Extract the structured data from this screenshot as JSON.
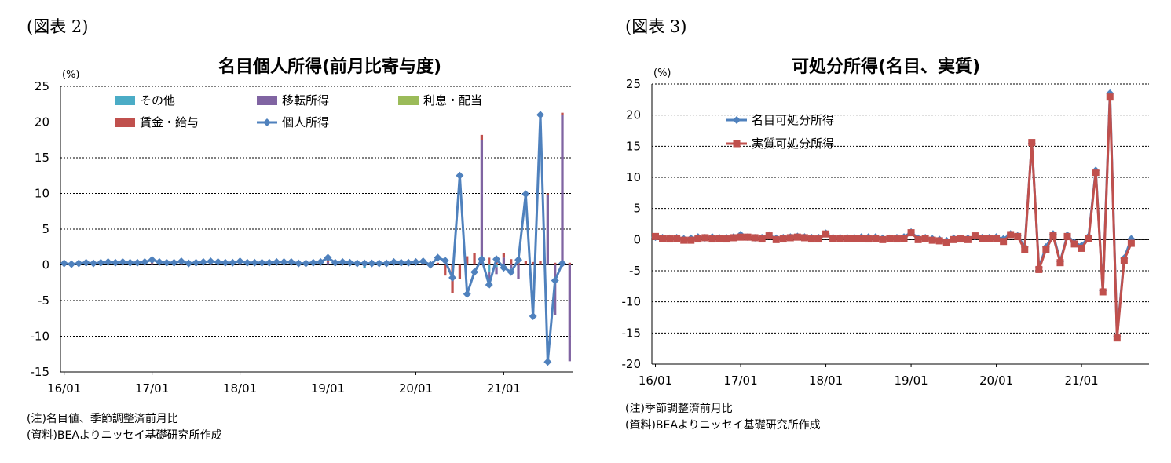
{
  "figures": [
    {
      "label": "(図表 2)",
      "notes": [
        "(注)名目値、季節調整済前月比",
        "(資料)BEAよりニッセイ基礎研究所作成"
      ]
    },
    {
      "label": "(図表 3)",
      "notes": [
        "(注)季節調整済前月比",
        "(資料)BEAよりニッセイ基礎研究所作成"
      ]
    }
  ],
  "chart_data": [
    {
      "type": "bar",
      "title": "名目個人所得(前月比寄与度)",
      "ylabel": "(%)",
      "ylim": [
        -15,
        25
      ],
      "yticks": [
        25,
        20,
        15,
        10,
        5,
        0,
        -5,
        -10,
        -15
      ],
      "xtick_labels": [
        "16/01",
        "17/01",
        "18/01",
        "19/01",
        "20/01",
        "21/01"
      ],
      "grid": true,
      "legend_position": "top",
      "colors": {
        "other": "#4bacc6",
        "transfer": "#8064a2",
        "interest": "#9bbb59",
        "wages": "#c0504d",
        "income": "#4f81bd"
      },
      "series": [
        {
          "key": "other",
          "name": "その他",
          "values": [
            0,
            0,
            0,
            0,
            0,
            0,
            0,
            0,
            0,
            0,
            0,
            0,
            0,
            0,
            0,
            0,
            0,
            0,
            0,
            0,
            0,
            0,
            0,
            0,
            0,
            0,
            0,
            0,
            0,
            0,
            0,
            0,
            0,
            0,
            0,
            0,
            0,
            0,
            0,
            0,
            0,
            -0.5,
            0,
            0,
            0,
            0,
            0,
            0,
            0,
            0,
            0,
            0,
            0,
            0,
            0,
            0,
            0,
            0,
            -1.0,
            -0.3,
            0,
            0,
            0,
            0,
            0,
            0,
            0,
            0,
            0,
            0,
            0,
            0,
            0,
            0,
            0,
            0
          ]
        },
        {
          "key": "transfer",
          "name": "移転所得",
          "values": [
            0,
            0,
            0,
            0,
            0,
            0,
            0.1,
            0,
            0,
            0,
            0,
            0,
            0.2,
            0,
            0,
            0,
            0,
            0,
            0,
            0,
            0,
            0,
            0,
            0,
            0.2,
            0,
            0,
            0,
            0,
            0,
            0,
            0,
            0,
            0,
            0,
            0,
            0.4,
            0,
            0,
            0,
            0,
            0,
            0,
            0,
            0,
            0,
            0,
            0,
            0.5,
            0,
            0,
            0,
            0,
            0,
            0,
            0,
            0,
            17.5,
            -1.5,
            -1.0,
            1.0,
            -0.5,
            -2.0,
            0,
            0,
            0,
            9.8,
            -7.0,
            21.0,
            -13.5,
            -2.2,
            0,
            0,
            0,
            0,
            0
          ]
        },
        {
          "key": "interest",
          "name": "利息・配当",
          "values": [
            0,
            0,
            0,
            0,
            0,
            0,
            0,
            0,
            0,
            0,
            0,
            0,
            0,
            0,
            0,
            0,
            0,
            0,
            0,
            0,
            0,
            0,
            0,
            0,
            0,
            0,
            0,
            0,
            0,
            0,
            0,
            0,
            0,
            0,
            0,
            0,
            0,
            0,
            0,
            0,
            0,
            0,
            0,
            0,
            0,
            0,
            0,
            0,
            0,
            0,
            0,
            0,
            0,
            0,
            0,
            0,
            0,
            0,
            0,
            0,
            0,
            0,
            0,
            0,
            0,
            0,
            0,
            0,
            0,
            0,
            0,
            0,
            0,
            0,
            0,
            0
          ]
        },
        {
          "key": "wages",
          "name": "賃金・給与",
          "values": [
            0.2,
            0.1,
            0.2,
            0.2,
            0.1,
            0.2,
            0.3,
            0.2,
            0.2,
            0.2,
            0.2,
            0.2,
            0.4,
            0.3,
            0.2,
            0.2,
            0.3,
            0.2,
            0.2,
            0.3,
            0.3,
            0.3,
            0.2,
            0.2,
            0.3,
            0.2,
            0.2,
            0.3,
            0.2,
            0.3,
            0.3,
            0.3,
            0.2,
            0.2,
            0.2,
            0.3,
            0.5,
            0.2,
            0.2,
            0.3,
            0.2,
            0.2,
            0.2,
            0.2,
            0.2,
            0.2,
            0.3,
            0.2,
            0.3,
            0.3,
            0.3,
            0.3,
            -1.5,
            -4.0,
            -2.0,
            1.2,
            1.6,
            0.7,
            1.0,
            0.5,
            0.6,
            0.8,
            1.0,
            0.6,
            0.4,
            0.5,
            0.2,
            0.3,
            0.3,
            0.3,
            0.3,
            0.3,
            0.3,
            0,
            0,
            0
          ]
        },
        {
          "key": "income",
          "name": "個人所得",
          "type": "line",
          "values": [
            0.2,
            0.1,
            0.2,
            0.3,
            0.2,
            0.3,
            0.4,
            0.3,
            0.4,
            0.3,
            0.3,
            0.4,
            0.7,
            0.4,
            0.3,
            0.3,
            0.5,
            0.2,
            0.3,
            0.4,
            0.5,
            0.4,
            0.3,
            0.3,
            0.5,
            0.3,
            0.3,
            0.3,
            0.3,
            0.4,
            0.4,
            0.4,
            0.2,
            0.2,
            0.3,
            0.4,
            1.0,
            0.3,
            0.4,
            0.3,
            0.2,
            0.2,
            0.2,
            0.2,
            0.2,
            0.4,
            0.3,
            0.3,
            0.4,
            0.5,
            0.0,
            1.0,
            0.6,
            -1.8,
            12.5,
            -4.1,
            -1.0,
            0.8,
            -2.8,
            0.8,
            -0.4,
            -1.0,
            0.7,
            9.9,
            -7.2,
            21.0,
            -13.6,
            -2.2,
            0.2
          ]
        }
      ]
    },
    {
      "type": "line",
      "title": "可処分所得(名目、実質)",
      "ylabel": "(%)",
      "ylim": [
        -20,
        25
      ],
      "yticks": [
        25,
        20,
        15,
        10,
        5,
        0,
        -5,
        -10,
        -15,
        -20
      ],
      "xtick_labels": [
        "16/01",
        "17/01",
        "18/01",
        "19/01",
        "20/01",
        "21/01"
      ],
      "grid": true,
      "legend_position": "top-left",
      "colors": {
        "nominal": "#4f81bd",
        "real": "#c0504d"
      },
      "series": [
        {
          "key": "nominal",
          "name": "名目可処分所得",
          "values": [
            0.4,
            0.3,
            0.2,
            0.3,
            0.1,
            0.2,
            0.4,
            0.3,
            0.4,
            0.3,
            0.3,
            0.4,
            0.8,
            0.4,
            0.3,
            0.3,
            0.7,
            0.2,
            0.3,
            0.4,
            0.5,
            0.4,
            0.3,
            0.3,
            1.0,
            0.3,
            0.3,
            0.3,
            0.3,
            0.4,
            0.4,
            0.4,
            0.2,
            0.2,
            0.3,
            0.4,
            1.2,
            0.2,
            0.3,
            0.1,
            0.0,
            -0.2,
            0.2,
            0.2,
            0.2,
            0.5,
            0.3,
            0.3,
            0.4,
            0.1,
            0.9,
            0.6,
            -1.2,
            15.5,
            -4.5,
            -1.2,
            0.9,
            -3.5,
            0.7,
            -0.5,
            -1.0,
            0.5,
            11.1,
            -8.2,
            23.5,
            -15.5,
            -3.0,
            0.1
          ]
        },
        {
          "key": "real",
          "name": "実質可処分所得",
          "values": [
            0.5,
            0.2,
            0.1,
            0.2,
            -0.1,
            -0.1,
            0.1,
            0.3,
            0.1,
            0.2,
            0.1,
            0.3,
            0.4,
            0.4,
            0.3,
            0.1,
            0.6,
            0.0,
            0.1,
            0.3,
            0.4,
            0.3,
            0.1,
            0.1,
            0.9,
            0.2,
            0.2,
            0.2,
            0.2,
            0.2,
            0.1,
            0.2,
            0.0,
            0.2,
            0.1,
            0.2,
            1.1,
            0.0,
            0.2,
            -0.1,
            -0.2,
            -0.4,
            0.0,
            0.1,
            0.0,
            0.6,
            0.2,
            0.2,
            0.2,
            -0.3,
            0.8,
            0.5,
            -1.6,
            15.6,
            -4.8,
            -1.6,
            0.6,
            -3.7,
            0.5,
            -0.7,
            -1.4,
            0.2,
            10.8,
            -8.4,
            22.9,
            -15.8,
            -3.3,
            -0.6
          ]
        }
      ]
    }
  ]
}
